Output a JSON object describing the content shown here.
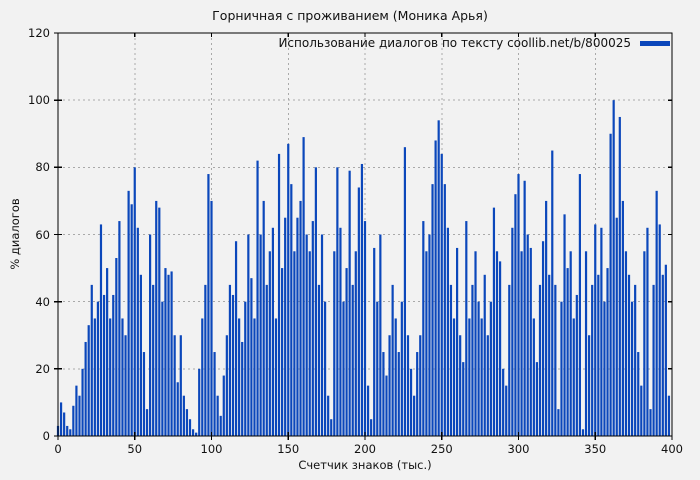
{
  "chart": {
    "title": "Горничная с проживанием (Моника Арья)",
    "legend_label": "Использование диалогов по тексту coollib.net/b/800025",
    "xlabel": "Счетчик знаков (тыс.)",
    "ylabel": "% диалогов",
    "colors": {
      "bar": "#0b47bb",
      "background": "#f2f2f2",
      "grid": "#a9a9a9",
      "border": "#000000"
    }
  },
  "chart_data": {
    "type": "bar",
    "title": "Горничная с проживанием (Моника Арья)",
    "xlabel": "Счетчик знаков (тыс.)",
    "ylabel": "% диалогов",
    "legend": [
      "Использование диалогов по тексту coollib.net/b/800025"
    ],
    "legend_position": "top-right",
    "grid": true,
    "xlim": [
      0,
      400
    ],
    "ylim": [
      0,
      120
    ],
    "xticks": [
      0,
      50,
      100,
      150,
      200,
      250,
      300,
      350,
      400
    ],
    "yticks": [
      0,
      20,
      40,
      60,
      80,
      100,
      120
    ],
    "x_start": 0,
    "x_step": 2,
    "values": [
      3,
      10,
      7,
      3,
      2,
      9,
      15,
      12,
      20,
      28,
      33,
      45,
      35,
      40,
      63,
      42,
      50,
      35,
      42,
      53,
      64,
      35,
      30,
      73,
      69,
      80,
      62,
      48,
      25,
      8,
      60,
      45,
      70,
      68,
      40,
      50,
      48,
      49,
      30,
      16,
      30,
      12,
      8,
      5,
      2,
      1,
      20,
      35,
      45,
      78,
      70,
      25,
      12,
      6,
      18,
      30,
      45,
      42,
      58,
      35,
      28,
      40,
      60,
      47,
      35,
      82,
      60,
      70,
      45,
      55,
      62,
      35,
      84,
      50,
      65,
      87,
      75,
      55,
      65,
      70,
      89,
      60,
      55,
      64,
      80,
      45,
      60,
      40,
      12,
      5,
      55,
      80,
      62,
      40,
      50,
      79,
      45,
      55,
      74,
      81,
      64,
      15,
      5,
      56,
      40,
      60,
      25,
      18,
      30,
      45,
      35,
      25,
      40,
      86,
      30,
      20,
      12,
      25,
      30,
      64,
      55,
      60,
      75,
      88,
      94,
      84,
      75,
      62,
      45,
      35,
      56,
      30,
      22,
      64,
      35,
      45,
      55,
      40,
      35,
      48,
      30,
      40,
      68,
      55,
      52,
      20,
      15,
      45,
      62,
      72,
      78,
      55,
      76,
      60,
      56,
      35,
      22,
      45,
      58,
      70,
      48,
      85,
      45,
      8,
      40,
      66,
      50,
      55,
      35,
      42,
      78,
      2,
      55,
      30,
      45,
      63,
      48,
      62,
      40,
      50,
      90,
      100,
      65,
      95,
      70,
      55,
      48,
      40,
      45,
      25,
      15,
      55,
      62,
      8,
      45,
      73,
      63,
      48,
      51,
      12
    ]
  }
}
